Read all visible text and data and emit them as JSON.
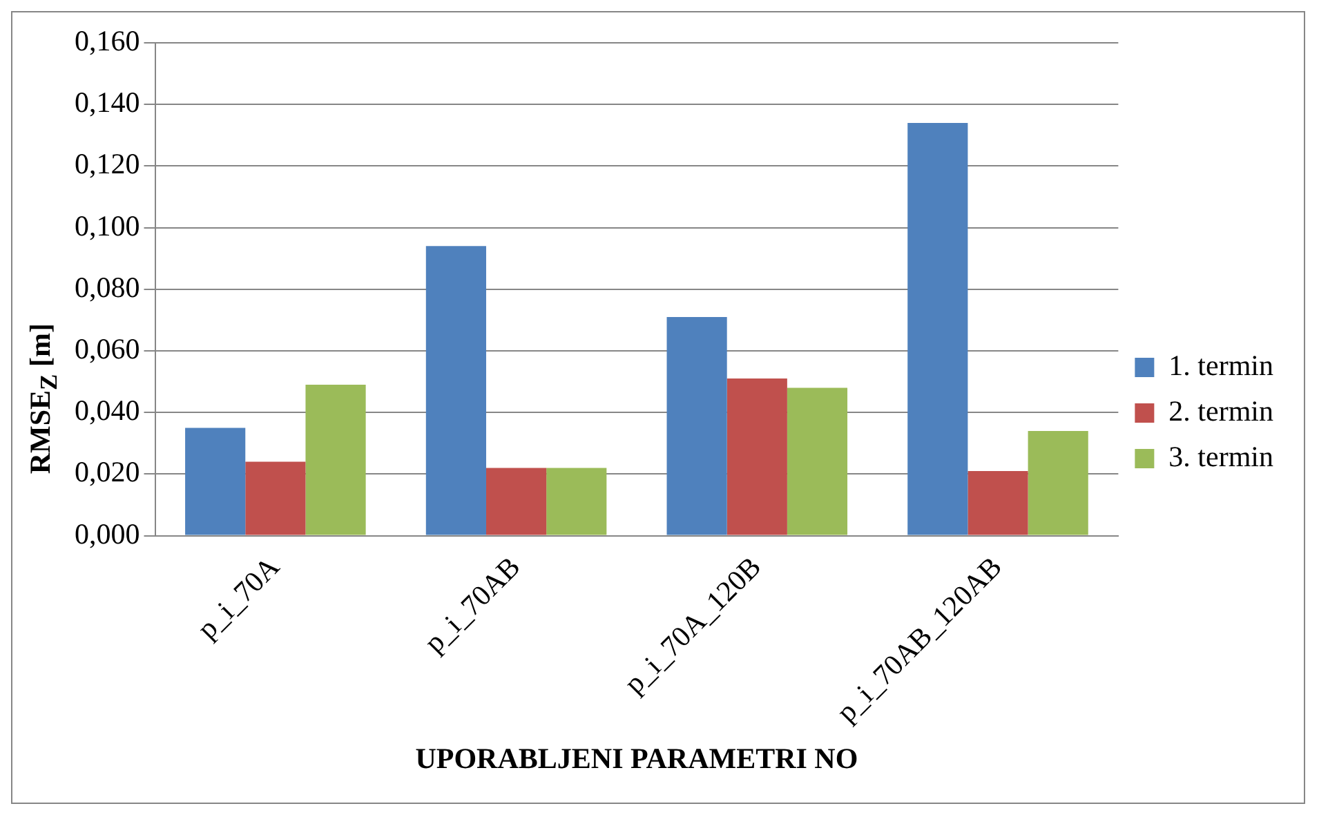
{
  "chart_data": {
    "type": "bar",
    "xlabel": "UPORABLJENI PARAMETRI NO",
    "ylabel": "RMSE$_{Z}$ [m]",
    "categories": [
      "p_i_70A",
      "p_i_70AB",
      "p_i_70A_120B",
      "p_i_70AB_120AB"
    ],
    "series": [
      {
        "name": "1. termin",
        "color": "#4f81bd",
        "values": [
          0.035,
          0.094,
          0.071,
          0.134
        ]
      },
      {
        "name": "2. termin",
        "color": "#c0504d",
        "values": [
          0.024,
          0.022,
          0.051,
          0.021
        ]
      },
      {
        "name": "3. termin",
        "color": "#9bbb59",
        "values": [
          0.049,
          0.022,
          0.048,
          0.034
        ]
      }
    ],
    "ylim": [
      0,
      0.16
    ],
    "yticks": [
      {
        "value": 0,
        "label": "0,000"
      },
      {
        "value": 0.02,
        "label": "0,020"
      },
      {
        "value": 0.04,
        "label": "0,040"
      },
      {
        "value": 0.06,
        "label": "0,060"
      },
      {
        "value": 0.08,
        "label": "0,080"
      },
      {
        "value": 0.1,
        "label": "0,100"
      },
      {
        "value": 0.12,
        "label": "0,120"
      },
      {
        "value": 0.14,
        "label": "0,140"
      },
      {
        "value": 0.16,
        "label": "0,160"
      }
    ],
    "grid": "y",
    "legend": "right"
  }
}
